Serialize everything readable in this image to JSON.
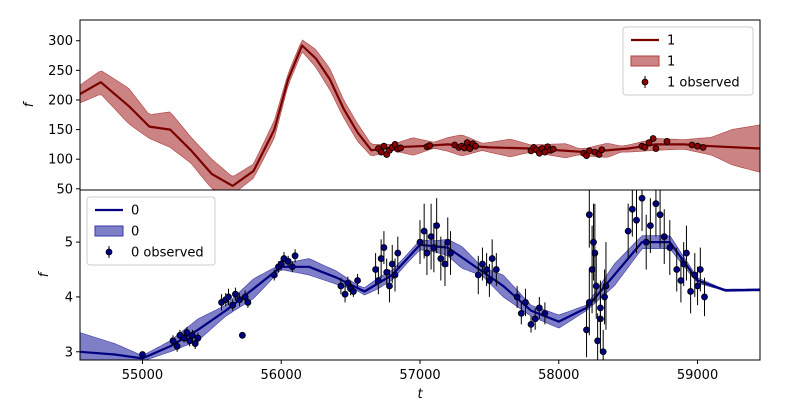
{
  "chart_data": [
    {
      "type": "line",
      "panel": "top",
      "title": "",
      "xlabel": "",
      "ylabel": "f",
      "xlim": [
        54550,
        59450
      ],
      "ylim": [
        48,
        335
      ],
      "yticks": [
        50,
        100,
        150,
        200,
        250,
        300
      ],
      "xticks": [],
      "grid": false,
      "legend_placement": "top-right",
      "colors": {
        "line": "#7a0000",
        "band": "#b04040",
        "points": "#8b0000"
      },
      "legend": [
        {
          "kind": "line",
          "label": "1"
        },
        {
          "kind": "band",
          "label": "1"
        },
        {
          "kind": "errorbar",
          "label": "1 observed"
        }
      ],
      "mean_line": {
        "x": [
          54550,
          54700,
          54900,
          55050,
          55200,
          55350,
          55500,
          55650,
          55800,
          55950,
          56050,
          56150,
          56250,
          56350,
          56450,
          56550,
          56650,
          56800,
          57000,
          57200,
          57500,
          57800,
          58000,
          58200,
          58500,
          58700,
          58900,
          59100,
          59450
        ],
        "y": [
          210,
          230,
          190,
          155,
          150,
          115,
          75,
          55,
          80,
          150,
          235,
          292,
          270,
          235,
          185,
          145,
          115,
          120,
          122,
          125,
          120,
          118,
          115,
          112,
          118,
          125,
          125,
          122,
          118
        ]
      },
      "band_halfwidth": [
        [
          54550,
          15
        ],
        [
          54700,
          20
        ],
        [
          54900,
          30
        ],
        [
          55050,
          20
        ],
        [
          55200,
          30
        ],
        [
          55350,
          22
        ],
        [
          55500,
          25
        ],
        [
          55650,
          15
        ],
        [
          55800,
          12
        ],
        [
          55950,
          15
        ],
        [
          56050,
          10
        ],
        [
          56150,
          10
        ],
        [
          56250,
          15
        ],
        [
          56350,
          18
        ],
        [
          56450,
          15
        ],
        [
          56550,
          15
        ],
        [
          56650,
          10
        ],
        [
          56800,
          5
        ],
        [
          56950,
          15
        ],
        [
          57100,
          5
        ],
        [
          57300,
          18
        ],
        [
          57450,
          6
        ],
        [
          57650,
          15
        ],
        [
          57800,
          6
        ],
        [
          58050,
          12
        ],
        [
          58150,
          5
        ],
        [
          58350,
          12
        ],
        [
          58450,
          5
        ],
        [
          58700,
          10
        ],
        [
          58900,
          8
        ],
        [
          59100,
          15
        ],
        [
          59250,
          30
        ],
        [
          59450,
          40
        ]
      ],
      "observed_x": [
        56700,
        56720,
        56740,
        56760,
        56780,
        56800,
        56820,
        56840,
        56860,
        57050,
        57070,
        57250,
        57280,
        57300,
        57320,
        57340,
        57350,
        57360,
        57380,
        57400,
        57800,
        57820,
        57840,
        57860,
        57880,
        57900,
        57920,
        57940,
        57960,
        58180,
        58200,
        58220,
        58260,
        58290,
        58310,
        58600,
        58620,
        58650,
        58680,
        58700,
        58780,
        58960,
        59000,
        59040
      ],
      "observed_y": [
        118,
        112,
        122,
        108,
        115,
        120,
        125,
        117,
        119,
        121,
        123,
        124,
        120,
        122,
        119,
        128,
        120,
        118,
        126,
        122,
        114,
        120,
        116,
        110,
        118,
        112,
        121,
        115,
        117,
        110,
        106,
        114,
        112,
        108,
        116,
        122,
        120,
        128,
        135,
        118,
        130,
        124,
        122,
        120
      ],
      "observed_err": 5
    },
    {
      "type": "line",
      "panel": "bottom",
      "title": "",
      "xlabel": "t",
      "ylabel": "f",
      "xlim": [
        54550,
        59450
      ],
      "ylim": [
        2.85,
        5.95
      ],
      "yticks": [
        3,
        4,
        5
      ],
      "xticks": [
        55000,
        56000,
        57000,
        58000,
        59000
      ],
      "grid": false,
      "legend_placement": "top-left",
      "colors": {
        "line": "#000080",
        "band": "#3a3aaa",
        "points": "#000080"
      },
      "legend": [
        {
          "kind": "line",
          "label": "0"
        },
        {
          "kind": "band",
          "label": "0"
        },
        {
          "kind": "errorbar",
          "label": "0 observed"
        }
      ],
      "mean_line": {
        "x": [
          54550,
          54800,
          55000,
          55200,
          55400,
          55600,
          55800,
          56000,
          56200,
          56400,
          56600,
          56800,
          57000,
          57200,
          57400,
          57600,
          57800,
          58000,
          58200,
          58400,
          58600,
          58800,
          59000,
          59200,
          59450
        ],
        "y": [
          3.0,
          2.95,
          2.88,
          3.1,
          3.4,
          3.75,
          4.15,
          4.55,
          4.55,
          4.35,
          4.1,
          4.4,
          4.95,
          4.9,
          4.55,
          4.2,
          3.75,
          3.55,
          3.8,
          4.4,
          5.0,
          5.0,
          4.3,
          4.12,
          4.13
        ]
      },
      "band_halfwidth": [
        [
          54550,
          0.35
        ],
        [
          54800,
          0.2
        ],
        [
          55000,
          0.05
        ],
        [
          55200,
          0.1
        ],
        [
          55400,
          0.2
        ],
        [
          55600,
          0.1
        ],
        [
          55800,
          0.18
        ],
        [
          56000,
          0.05
        ],
        [
          56200,
          0.15
        ],
        [
          56400,
          0.12
        ],
        [
          56550,
          0.05
        ],
        [
          56700,
          0.1
        ],
        [
          56900,
          0.08
        ],
        [
          57100,
          0.1
        ],
        [
          57300,
          0.2
        ],
        [
          57450,
          0.08
        ],
        [
          57600,
          0.2
        ],
        [
          57800,
          0.1
        ],
        [
          58000,
          0.12
        ],
        [
          58200,
          0.05
        ],
        [
          58400,
          0.2
        ],
        [
          58600,
          0.12
        ],
        [
          58800,
          0.12
        ],
        [
          59000,
          0.05
        ],
        [
          59150,
          0.02
        ],
        [
          59450,
          0.02
        ]
      ],
      "observed_x": [
        55000,
        55220,
        55250,
        55270,
        55300,
        55320,
        55340,
        55360,
        55380,
        55400,
        55570,
        55600,
        55620,
        55650,
        55670,
        55700,
        55720,
        55740,
        55760,
        55950,
        55980,
        56000,
        56020,
        56050,
        56080,
        56100,
        56430,
        56460,
        56480,
        56500,
        56520,
        56550,
        56680,
        56700,
        56720,
        56740,
        56760,
        56780,
        56800,
        56820,
        56840,
        57000,
        57030,
        57050,
        57080,
        57100,
        57120,
        57150,
        57180,
        57200,
        57220,
        57420,
        57450,
        57480,
        57500,
        57520,
        57550,
        57700,
        57730,
        57760,
        57800,
        57830,
        57860,
        57900,
        58200,
        58220,
        58240,
        58260,
        58280,
        58300,
        58320,
        58340,
        58220,
        58250,
        58270,
        58300,
        58330,
        58500,
        58530,
        58560,
        58600,
        58630,
        58660,
        58700,
        58730,
        58760,
        58800,
        58850,
        58880,
        58900,
        58920,
        58950,
        58980,
        59000,
        59020,
        59050
      ],
      "observed_y": [
        2.95,
        3.2,
        3.1,
        3.3,
        3.25,
        3.35,
        3.2,
        3.3,
        3.15,
        3.25,
        3.9,
        3.95,
        4.0,
        3.85,
        4.05,
        3.95,
        3.3,
        4.0,
        3.9,
        4.4,
        4.55,
        4.6,
        4.7,
        4.65,
        4.55,
        4.75,
        4.2,
        4.05,
        4.25,
        4.15,
        4.1,
        4.3,
        4.5,
        4.3,
        4.7,
        4.9,
        4.45,
        4.2,
        4.6,
        4.4,
        4.8,
        5.0,
        5.2,
        4.8,
        5.1,
        4.9,
        5.3,
        4.7,
        4.6,
        5.0,
        4.8,
        4.4,
        4.6,
        4.5,
        4.3,
        4.7,
        4.5,
        4.0,
        3.7,
        3.9,
        3.5,
        3.6,
        3.8,
        3.7,
        3.4,
        3.9,
        4.5,
        4.8,
        3.2,
        3.6,
        3.0,
        4.2,
        5.5,
        5.0,
        4.2,
        3.8,
        4.0,
        5.2,
        5.6,
        5.4,
        5.8,
        5.0,
        5.3,
        5.7,
        5.5,
        5.1,
        4.9,
        4.5,
        4.3,
        4.6,
        4.8,
        4.1,
        4.4,
        4.2,
        4.5,
        4.0
      ],
      "observed_err": [
        0.05,
        0.1,
        0.1,
        0.1,
        0.08,
        0.1,
        0.1,
        0.1,
        0.1,
        0.1,
        0.15,
        0.12,
        0.15,
        0.1,
        0.12,
        0.12,
        0.05,
        0.12,
        0.1,
        0.1,
        0.1,
        0.12,
        0.12,
        0.1,
        0.1,
        0.12,
        0.15,
        0.15,
        0.12,
        0.12,
        0.1,
        0.12,
        0.3,
        0.25,
        0.35,
        0.3,
        0.25,
        0.3,
        0.35,
        0.3,
        0.3,
        0.4,
        0.5,
        0.4,
        0.6,
        0.45,
        0.5,
        0.4,
        0.4,
        0.45,
        0.4,
        0.35,
        0.3,
        0.3,
        0.3,
        0.35,
        0.3,
        0.2,
        0.2,
        0.25,
        0.15,
        0.2,
        0.2,
        0.2,
        0.5,
        0.6,
        0.8,
        0.9,
        0.5,
        0.6,
        0.4,
        0.8,
        0.6,
        0.7,
        0.6,
        0.5,
        0.5,
        0.5,
        0.5,
        0.6,
        0.6,
        0.5,
        0.5,
        0.6,
        0.6,
        0.5,
        0.5,
        0.4,
        0.4,
        0.4,
        0.5,
        0.4,
        0.4,
        0.35,
        0.4,
        0.35
      ]
    }
  ]
}
